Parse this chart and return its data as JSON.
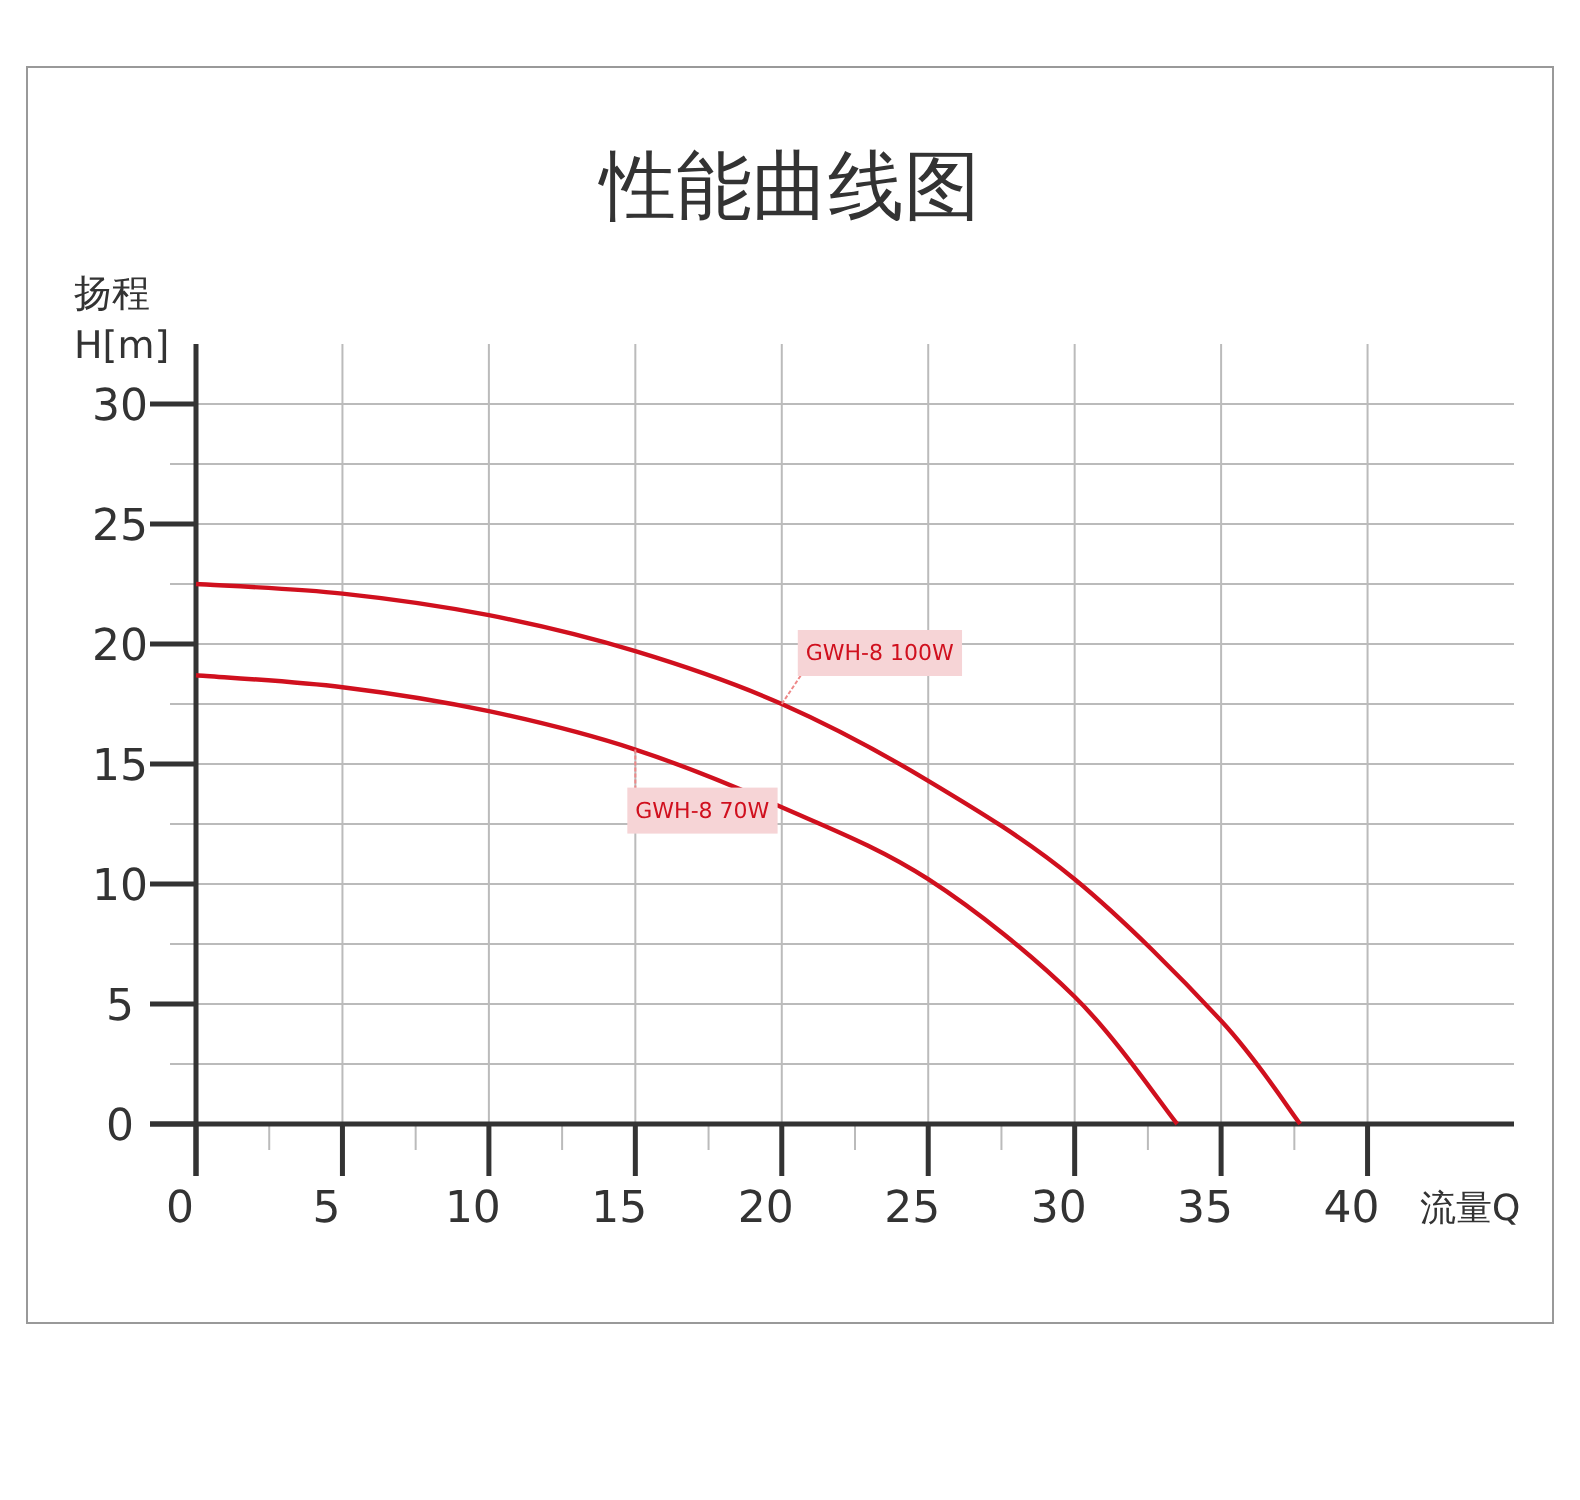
{
  "chart_data": {
    "type": "line",
    "title": "性能曲线图",
    "ylabel": "扬程 H[m]",
    "xlabel": "流量Q",
    "series": [
      {
        "name": "GWH-8 100W",
        "color": "#d0101e",
        "x": [
          0,
          5,
          10,
          15,
          20,
          25,
          30,
          35,
          37.7
        ],
        "values": [
          22.5,
          22.1,
          21.2,
          19.7,
          17.5,
          14.3,
          10.2,
          4.3,
          0
        ]
      },
      {
        "name": "GWH-8 70W",
        "color": "#d0101e",
        "x": [
          0,
          5,
          10,
          15,
          20,
          25,
          30,
          33.5
        ],
        "values": [
          18.7,
          18.2,
          17.2,
          15.6,
          13.2,
          10.2,
          5.3,
          0
        ]
      }
    ],
    "xlim": [
      0,
      45
    ],
    "ylim": [
      0,
      32.5
    ],
    "xticks": [
      0,
      {
        "value": 2.5,
        "label": null
      },
      5,
      {
        "value": 7.5,
        "label": null
      },
      10,
      {
        "value": 12.5,
        "label": null
      },
      15,
      {
        "value": 17.5,
        "label": null
      },
      20,
      {
        "value": 22.5,
        "label": null
      },
      25,
      {
        "value": 27.5,
        "label": null
      },
      30,
      {
        "value": 32.5,
        "label": null
      },
      35,
      {
        "value": 37.5,
        "label": null
      },
      40
    ],
    "yticks": [
      0,
      {
        "value": 2.5,
        "label": null
      },
      5,
      {
        "value": 7.5,
        "label": null
      },
      10,
      {
        "value": 12.5,
        "label": null
      },
      15,
      {
        "value": 17.5,
        "label": null
      },
      20,
      {
        "value": 22.5,
        "label": null
      },
      25,
      {
        "value": 27.5,
        "label": null
      },
      30
    ],
    "grid": true,
    "legend": false,
    "marker": "none",
    "line_style": "solid"
  }
}
